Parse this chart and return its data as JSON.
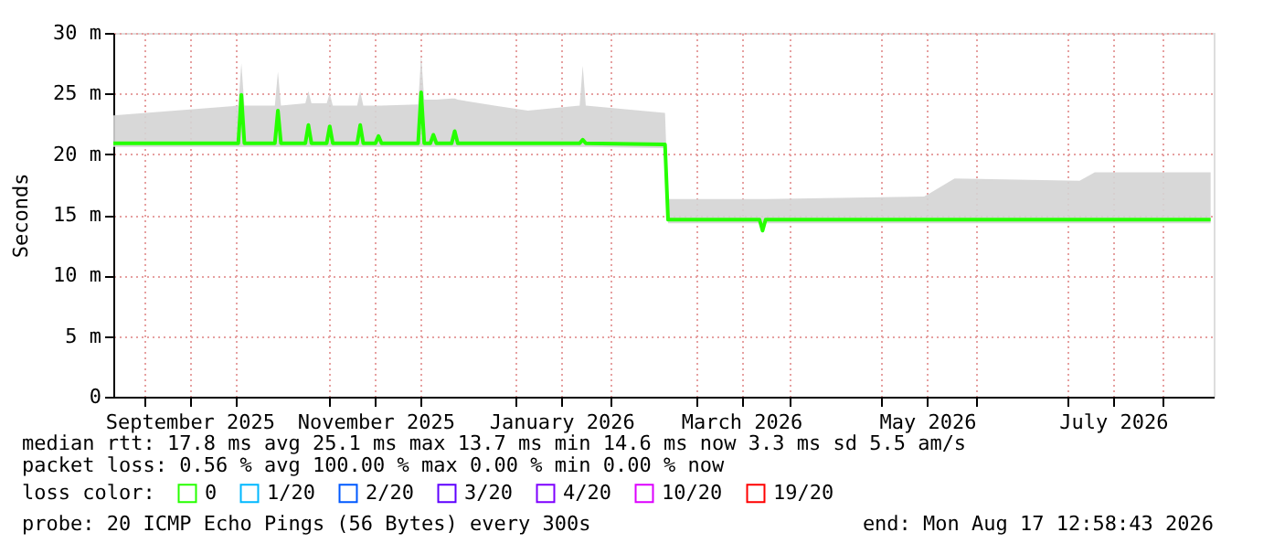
{
  "chart_data": {
    "type": "line",
    "ylabel": "Seconds",
    "x": [
      "2025-08-22",
      "2025-10-02",
      "2025-10-03",
      "2025-10-04",
      "2025-10-14",
      "2025-10-15",
      "2025-10-16",
      "2025-10-24",
      "2025-10-25",
      "2025-10-26",
      "2025-10-31",
      "2025-11-01",
      "2025-11-02",
      "2025-11-10",
      "2025-11-11",
      "2025-11-12",
      "2025-11-16",
      "2025-11-17",
      "2025-11-18",
      "2025-11-30",
      "2025-12-01",
      "2025-12-02",
      "2025-12-04",
      "2025-12-05",
      "2025-12-06",
      "2025-12-11",
      "2025-12-12",
      "2025-12-13",
      "2025-12-25",
      "2026-01-05",
      "2026-01-22",
      "2026-01-23",
      "2026-01-24",
      "2026-02-19",
      "2026-02-20",
      "2026-03-22",
      "2026-03-23",
      "2026-03-24",
      "2026-05-15",
      "2026-05-25",
      "2026-07-05",
      "2026-07-10",
      "2026-08-17"
    ],
    "series": [
      {
        "name": "0",
        "color": "#26ff00",
        "values": [
          20.9,
          20.9,
          24.9,
          20.9,
          20.9,
          23.6,
          20.9,
          20.9,
          22.4,
          20.9,
          20.9,
          22.3,
          20.9,
          20.9,
          22.4,
          20.9,
          20.9,
          21.5,
          20.9,
          20.9,
          25.1,
          20.9,
          20.9,
          21.6,
          20.9,
          20.9,
          21.9,
          20.9,
          20.9,
          20.9,
          20.9,
          21.2,
          20.9,
          20.8,
          14.6,
          14.6,
          13.7,
          14.6,
          14.6,
          14.6,
          14.6,
          14.6,
          14.6
        ],
        "lower": [
          20.6,
          20.6,
          20.6,
          20.6,
          20.6,
          20.6,
          20.6,
          20.6,
          20.6,
          20.6,
          20.6,
          20.6,
          20.6,
          20.6,
          20.6,
          20.6,
          20.6,
          20.6,
          20.6,
          20.6,
          20.6,
          20.6,
          20.6,
          20.6,
          20.6,
          20.6,
          20.6,
          20.6,
          20.6,
          20.6,
          20.6,
          20.6,
          20.6,
          20.5,
          14.3,
          14.3,
          13.7,
          14.3,
          14.3,
          14.3,
          14.3,
          14.3,
          14.3
        ],
        "upper": [
          23.2,
          24.0,
          27.5,
          24.0,
          24.0,
          26.8,
          24.0,
          24.2,
          25.2,
          24.2,
          24.2,
          25.0,
          24.0,
          24.0,
          25.2,
          24.0,
          24.0,
          24.0,
          24.0,
          24.1,
          28.2,
          24.5,
          24.5,
          24.5,
          24.5,
          24.6,
          24.6,
          24.5,
          24.0,
          23.6,
          24.0,
          27.3,
          24.0,
          23.4,
          16.3,
          16.3,
          16.3,
          16.3,
          16.5,
          18.0,
          17.8,
          18.5,
          18.5
        ]
      },
      {
        "name": "1/20",
        "color": "#00b8ff",
        "values": [
          null,
          null,
          null,
          null,
          null,
          null,
          null,
          null,
          null,
          null,
          null,
          null,
          null,
          null,
          null,
          null,
          null,
          null,
          null,
          null,
          null,
          null,
          null,
          null,
          null,
          null,
          null,
          null,
          null,
          null,
          null,
          null,
          null,
          null,
          null,
          null,
          null,
          null,
          null,
          null,
          null,
          null,
          null
        ]
      },
      {
        "name": "2/20",
        "color": "#0059ff",
        "values": [
          null,
          null,
          null,
          null,
          null,
          null,
          null,
          null,
          null,
          null,
          null,
          null,
          null,
          null,
          null,
          null,
          null,
          null,
          null,
          null,
          null,
          null,
          null,
          null,
          null,
          null,
          null,
          null,
          null,
          null,
          null,
          null,
          null,
          null,
          null,
          null,
          null,
          null,
          null,
          null,
          null,
          null,
          null
        ]
      },
      {
        "name": "3/20",
        "color": "#5e00ff",
        "values": [
          null,
          null,
          null,
          null,
          null,
          null,
          null,
          null,
          null,
          null,
          null,
          null,
          null,
          null,
          null,
          null,
          null,
          null,
          null,
          null,
          null,
          null,
          null,
          null,
          null,
          null,
          null,
          null,
          null,
          null,
          null,
          null,
          null,
          null,
          null,
          null,
          null,
          null,
          null,
          null,
          null,
          null,
          null
        ]
      },
      {
        "name": "4/20",
        "color": "#7e00ff",
        "values": [
          null,
          null,
          null,
          null,
          null,
          null,
          null,
          null,
          null,
          null,
          null,
          null,
          null,
          null,
          null,
          null,
          null,
          null,
          null,
          null,
          null,
          null,
          null,
          null,
          null,
          null,
          null,
          null,
          null,
          null,
          null,
          null,
          null,
          null,
          null,
          null,
          null,
          null,
          null,
          null,
          null,
          null,
          null
        ]
      },
      {
        "name": "10/20",
        "color": "#dd00ff",
        "values": [
          null,
          null,
          null,
          null,
          null,
          null,
          null,
          null,
          null,
          null,
          null,
          null,
          null,
          null,
          null,
          null,
          null,
          null,
          null,
          null,
          null,
          null,
          null,
          null,
          null,
          null,
          null,
          null,
          null,
          null,
          null,
          null,
          null,
          null,
          null,
          null,
          null,
          null,
          null,
          null,
          null,
          null,
          null
        ]
      },
      {
        "name": "19/20",
        "color": "#ff0000",
        "values": [
          null,
          null,
          null,
          null,
          null,
          null,
          null,
          null,
          null,
          null,
          null,
          null,
          null,
          null,
          null,
          null,
          null,
          null,
          null,
          null,
          null,
          null,
          null,
          null,
          null,
          null,
          null,
          null,
          null,
          null,
          null,
          null,
          null,
          null,
          null,
          null,
          null,
          null,
          null,
          null,
          null,
          null,
          null
        ]
      }
    ],
    "legend_title": "loss color:",
    "legend": "bottom",
    "grid": true,
    "line_style": "solid",
    "xlim": [
      "2025-08-22",
      "2026-08-18"
    ],
    "xticks": [
      {
        "value": "2025-09-01",
        "label": null
      },
      {
        "value": "2025-09-16",
        "label": "September 2025"
      },
      {
        "value": "2025-10-01",
        "label": null
      },
      {
        "value": "2025-11-01",
        "label": null
      },
      {
        "value": "2025-11-16",
        "label": "November 2025"
      },
      {
        "value": "2025-12-01",
        "label": null
      },
      {
        "value": "2026-01-01",
        "label": null
      },
      {
        "value": "2026-01-16",
        "label": "January 2026"
      },
      {
        "value": "2026-02-01",
        "label": null
      },
      {
        "value": "2026-03-01",
        "label": null
      },
      {
        "value": "2026-03-16",
        "label": "March 2026"
      },
      {
        "value": "2026-04-01",
        "label": null
      },
      {
        "value": "2026-05-01",
        "label": null
      },
      {
        "value": "2026-05-16",
        "label": "May 2026"
      },
      {
        "value": "2026-06-01",
        "label": null
      },
      {
        "value": "2026-07-01",
        "label": null
      },
      {
        "value": "2026-07-16",
        "label": "July 2026"
      },
      {
        "value": "2026-08-01",
        "label": null
      }
    ],
    "ylim": [
      0,
      30
    ],
    "yticks": [
      0,
      {
        "value": 5,
        "label": "5 m"
      },
      {
        "value": 10,
        "label": "10 m"
      },
      {
        "value": 15,
        "label": "15 m"
      },
      {
        "value": 20,
        "label": "20 m"
      },
      {
        "value": 25,
        "label": "25 m"
      },
      {
        "value": 30,
        "label": "30 m"
      }
    ],
    "annotations": [
      "median rtt:  17.8 ms avg  25.1 ms max  13.7 ms min  14.6 ms now  3.3 ms sd  5.5   am/s",
      "packet loss: 0.56 % avg  100.00 % max  0.00 % min  0.00 % now",
      "probe:       20 ICMP Echo Pings (56 Bytes) every 300s",
      "end: Mon Aug 17 12:58:43 2026"
    ]
  }
}
